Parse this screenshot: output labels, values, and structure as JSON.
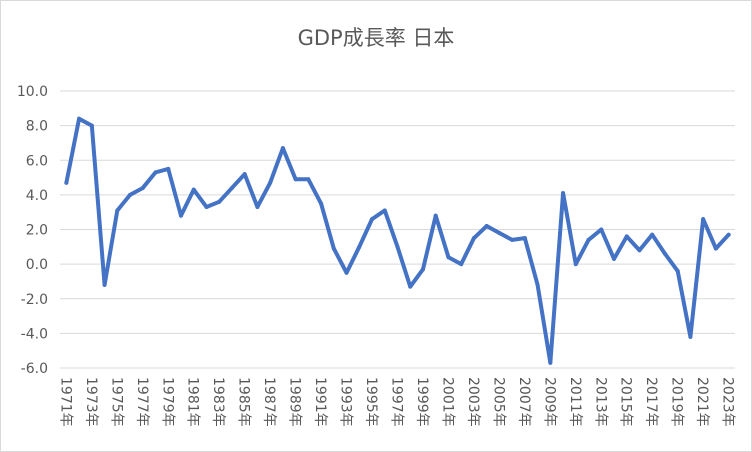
{
  "chart_data": {
    "type": "line",
    "title": "GDP成長率 日本",
    "xlabel": "",
    "ylabel": "",
    "ylim": [
      -6.0,
      10.0
    ],
    "yticks": [
      "10.0",
      "8.0",
      "6.0",
      "4.0",
      "2.0",
      "0.0",
      "-2.0",
      "-4.0",
      "-6.0"
    ],
    "grid": true,
    "legend": "none",
    "line_color": "#4472c4",
    "categories": [
      "1971年",
      "1972年",
      "1973年",
      "1974年",
      "1975年",
      "1976年",
      "1977年",
      "1978年",
      "1979年",
      "1980年",
      "1981年",
      "1982年",
      "1983年",
      "1984年",
      "1985年",
      "1986年",
      "1987年",
      "1988年",
      "1989年",
      "1990年",
      "1991年",
      "1992年",
      "1993年",
      "1994年",
      "1995年",
      "1996年",
      "1997年",
      "1998年",
      "1999年",
      "2000年",
      "2001年",
      "2002年",
      "2003年",
      "2004年",
      "2005年",
      "2006年",
      "2007年",
      "2008年",
      "2009年",
      "2010年",
      "2011年",
      "2012年",
      "2013年",
      "2014年",
      "2015年",
      "2016年",
      "2017年",
      "2018年",
      "2019年",
      "2020年",
      "2021年",
      "2022年",
      "2023年"
    ],
    "tick_labels": [
      "1971年",
      "1973年",
      "1975年",
      "1977年",
      "1979年",
      "1981年",
      "1983年",
      "1985年",
      "1987年",
      "1989年",
      "1991年",
      "1993年",
      "1995年",
      "1997年",
      "1999年",
      "2001年",
      "2003年",
      "2005年",
      "2007年",
      "2009年",
      "2011年",
      "2013年",
      "2015年",
      "2017年",
      "2019年",
      "2021年",
      "2023年"
    ],
    "series": [
      {
        "values": [
          4.7,
          8.4,
          8.0,
          -1.2,
          3.1,
          4.0,
          4.4,
          5.3,
          5.5,
          2.8,
          4.3,
          3.3,
          3.6,
          4.4,
          5.2,
          3.3,
          4.7,
          6.7,
          4.9,
          4.9,
          3.5,
          0.9,
          -0.5,
          1.0,
          2.6,
          3.1,
          1.0,
          -1.3,
          -0.3,
          2.8,
          0.4,
          0.0,
          1.5,
          2.2,
          1.8,
          1.4,
          1.5,
          -1.2,
          -5.7,
          4.1,
          0.0,
          1.4,
          2.0,
          0.3,
          1.6,
          0.8,
          1.7,
          0.6,
          -0.4,
          -4.2,
          2.6,
          0.9,
          1.7
        ]
      }
    ]
  }
}
